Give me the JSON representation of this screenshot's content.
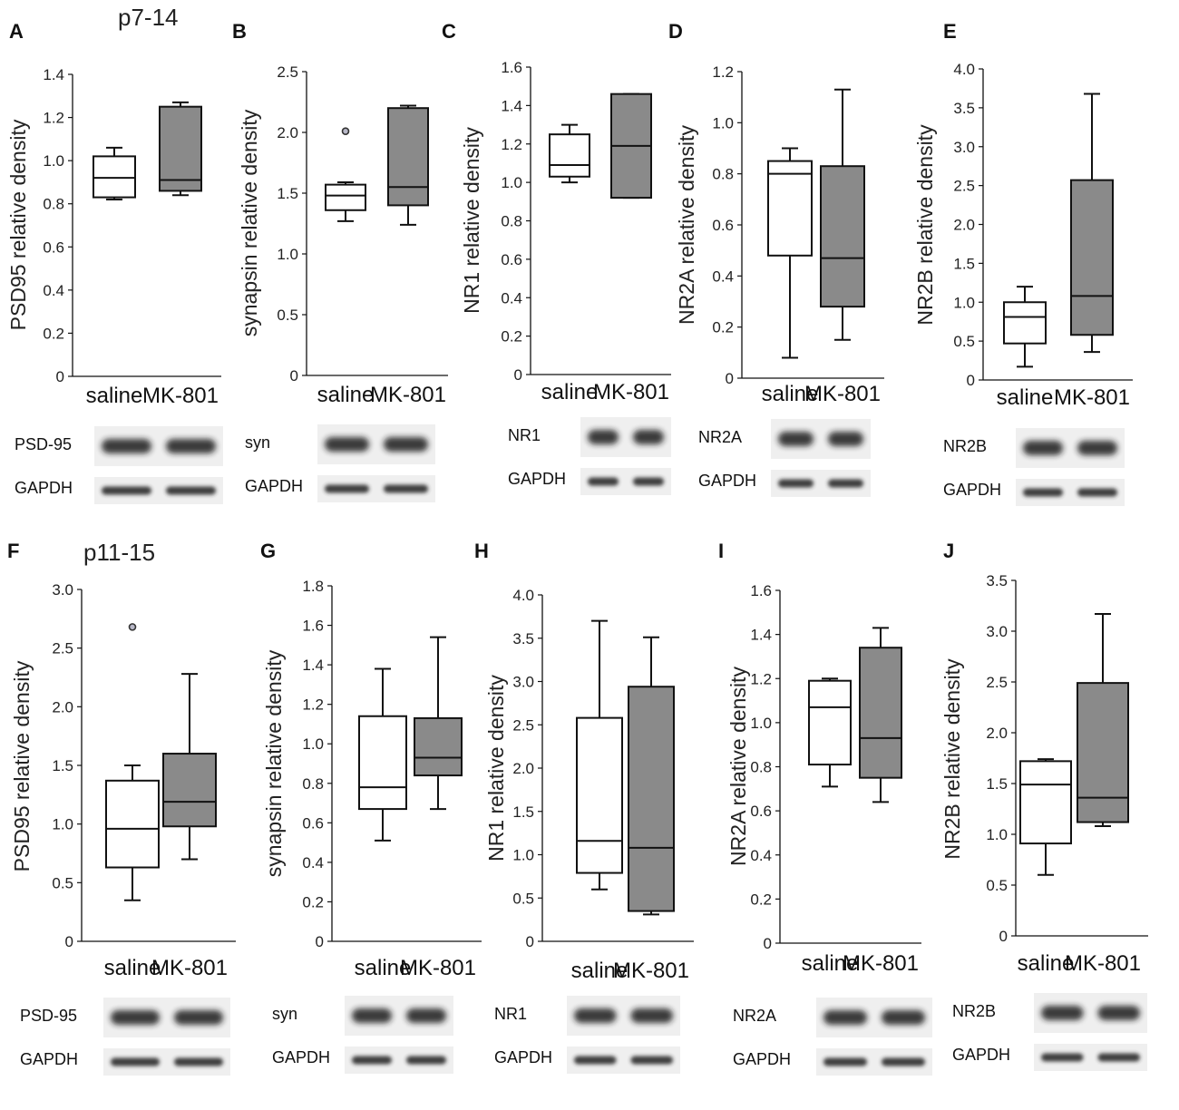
{
  "age_labels": {
    "top": "p7-14",
    "bottom": "p11-15"
  },
  "x_categories": [
    "saline",
    "MK-801"
  ],
  "colors": {
    "saline_fill": "#ffffff",
    "mk801_fill": "#8a8a8a",
    "stroke": "#111111",
    "outlier_fill": "#b8b8c8"
  },
  "chart_data": [
    {
      "panel": "A",
      "type": "box",
      "ylabel": "PSD95 relative density",
      "yticks": [
        "0",
        "0.2",
        "0.4",
        "0.6",
        "0.8",
        "1.0",
        "1.2",
        "1.4"
      ],
      "ylim": [
        0,
        1.4
      ],
      "categories": [
        "saline",
        "MK-801"
      ],
      "series": [
        {
          "whisker_low": 0.82,
          "q1": 0.83,
          "median": 0.92,
          "q3": 1.02,
          "whisker_high": 1.06,
          "outliers": []
        },
        {
          "whisker_low": 0.84,
          "q1": 0.86,
          "median": 0.91,
          "q3": 1.25,
          "whisker_high": 1.27,
          "outliers": []
        }
      ],
      "blots": [
        "PSD-95",
        "GAPDH"
      ]
    },
    {
      "panel": "B",
      "type": "box",
      "ylabel": "synapsin relative density",
      "yticks": [
        "0",
        "0.5",
        "1.0",
        "1.5",
        "2.0",
        "2.5"
      ],
      "ylim": [
        0,
        2.5
      ],
      "categories": [
        "saline",
        "MK-801"
      ],
      "series": [
        {
          "whisker_low": 1.27,
          "q1": 1.36,
          "median": 1.48,
          "q3": 1.57,
          "whisker_high": 1.59,
          "outliers": [
            2.01
          ]
        },
        {
          "whisker_low": 1.24,
          "q1": 1.4,
          "median": 1.55,
          "q3": 2.2,
          "whisker_high": 2.22,
          "outliers": []
        }
      ],
      "blots": [
        "syn",
        "GAPDH"
      ]
    },
    {
      "panel": "C",
      "type": "box",
      "ylabel": "NR1 relative density",
      "yticks": [
        "0",
        "0.2",
        "0.4",
        "0.6",
        "0.8",
        "1.0",
        "1.2",
        "1.4",
        "1.6"
      ],
      "ylim": [
        0,
        1.6
      ],
      "categories": [
        "saline",
        "MK-801"
      ],
      "series": [
        {
          "whisker_low": 1.0,
          "q1": 1.03,
          "median": 1.09,
          "q3": 1.25,
          "whisker_high": 1.3,
          "outliers": []
        },
        {
          "whisker_low": 0.92,
          "q1": 0.92,
          "median": 1.19,
          "q3": 1.46,
          "whisker_high": 1.46,
          "outliers": []
        }
      ],
      "blots": [
        "NR1",
        "GAPDH"
      ]
    },
    {
      "panel": "D",
      "type": "box",
      "ylabel": "NR2A relative density",
      "yticks": [
        "0",
        "0.2",
        "0.4",
        "0.6",
        "0.8",
        "1.0",
        "1.2"
      ],
      "ylim": [
        0,
        1.2
      ],
      "categories": [
        "saline",
        "MK-801"
      ],
      "series": [
        {
          "whisker_low": 0.08,
          "q1": 0.48,
          "median": 0.8,
          "q3": 0.85,
          "whisker_high": 0.9,
          "outliers": []
        },
        {
          "whisker_low": 0.15,
          "q1": 0.28,
          "median": 0.47,
          "q3": 0.83,
          "whisker_high": 1.13,
          "outliers": []
        }
      ],
      "blots": [
        "NR2A",
        "GAPDH"
      ]
    },
    {
      "panel": "E",
      "type": "box",
      "ylabel": "NR2B relative density",
      "yticks": [
        "0",
        "0.5",
        "1.0",
        "1.5",
        "2.0",
        "2.5",
        "3.0",
        "3.5",
        "4.0"
      ],
      "ylim": [
        0,
        4.0
      ],
      "categories": [
        "saline",
        "MK-801"
      ],
      "series": [
        {
          "whisker_low": 0.17,
          "q1": 0.47,
          "median": 0.81,
          "q3": 1.0,
          "whisker_high": 1.2,
          "outliers": []
        },
        {
          "whisker_low": 0.36,
          "q1": 0.58,
          "median": 1.08,
          "q3": 2.57,
          "whisker_high": 3.68,
          "outliers": []
        }
      ],
      "blots": [
        "NR2B",
        "GAPDH"
      ]
    },
    {
      "panel": "F",
      "type": "box",
      "ylabel": "PSD95 relative density",
      "yticks": [
        "0",
        "0.5",
        "1.0",
        "1.5",
        "2.0",
        "2.5",
        "3.0"
      ],
      "ylim": [
        0,
        3.0
      ],
      "categories": [
        "saline",
        "MK-801"
      ],
      "series": [
        {
          "whisker_low": 0.35,
          "q1": 0.63,
          "median": 0.96,
          "q3": 1.37,
          "whisker_high": 1.5,
          "outliers": [
            2.68
          ]
        },
        {
          "whisker_low": 0.7,
          "q1": 0.98,
          "median": 1.19,
          "q3": 1.6,
          "whisker_high": 2.28,
          "outliers": []
        }
      ],
      "blots": [
        "PSD-95",
        "GAPDH"
      ]
    },
    {
      "panel": "G",
      "type": "box",
      "ylabel": "synapsin relative density",
      "yticks": [
        "0",
        "0.2",
        "0.4",
        "0.6",
        "0.8",
        "1.0",
        "1.2",
        "1.4",
        "1.6",
        "1.8"
      ],
      "ylim": [
        0,
        1.8
      ],
      "categories": [
        "saline",
        "MK-801"
      ],
      "series": [
        {
          "whisker_low": 0.51,
          "q1": 0.67,
          "median": 0.78,
          "q3": 1.14,
          "whisker_high": 1.38,
          "outliers": []
        },
        {
          "whisker_low": 0.67,
          "q1": 0.84,
          "median": 0.93,
          "q3": 1.13,
          "whisker_high": 1.54,
          "outliers": []
        }
      ],
      "blots": [
        "syn",
        "GAPDH"
      ]
    },
    {
      "panel": "H",
      "type": "box",
      "ylabel": "NR1 relative density",
      "yticks": [
        "0",
        "0.5",
        "1.0",
        "1.5",
        "2.0",
        "2.5",
        "3.0",
        "3.5",
        "4.0"
      ],
      "ylim": [
        0,
        4.0
      ],
      "categories": [
        "saline",
        "MK-801"
      ],
      "series": [
        {
          "whisker_low": 0.6,
          "q1": 0.79,
          "median": 1.16,
          "q3": 2.58,
          "whisker_high": 3.7,
          "outliers": []
        },
        {
          "whisker_low": 0.31,
          "q1": 0.35,
          "median": 1.08,
          "q3": 2.94,
          "whisker_high": 3.51,
          "outliers": []
        }
      ],
      "blots": [
        "NR1",
        "GAPDH"
      ]
    },
    {
      "panel": "I",
      "type": "box",
      "ylabel": "NR2A relative density",
      "yticks": [
        "0",
        "0.2",
        "0.4",
        "0.6",
        "0.8",
        "1.0",
        "1.2",
        "1.4",
        "1.6"
      ],
      "ylim": [
        0,
        1.6
      ],
      "categories": [
        "saline",
        "MK-801"
      ],
      "series": [
        {
          "whisker_low": 0.71,
          "q1": 0.81,
          "median": 1.07,
          "q3": 1.19,
          "whisker_high": 1.2,
          "outliers": []
        },
        {
          "whisker_low": 0.64,
          "q1": 0.75,
          "median": 0.93,
          "q3": 1.34,
          "whisker_high": 1.43,
          "outliers": []
        }
      ],
      "blots": [
        "NR2A",
        "GAPDH"
      ]
    },
    {
      "panel": "J",
      "type": "box",
      "ylabel": "NR2B relative density",
      "yticks": [
        "0",
        "0.5",
        "1.0",
        "1.5",
        "2.0",
        "2.5",
        "3.0",
        "3.5"
      ],
      "ylim": [
        0,
        3.5
      ],
      "categories": [
        "saline",
        "MK-801"
      ],
      "series": [
        {
          "whisker_low": 0.6,
          "q1": 0.91,
          "median": 1.49,
          "q3": 1.72,
          "whisker_high": 1.74,
          "outliers": []
        },
        {
          "whisker_low": 1.08,
          "q1": 1.12,
          "median": 1.36,
          "q3": 2.49,
          "whisker_high": 3.17,
          "outliers": []
        }
      ],
      "blots": [
        "NR2B",
        "GAPDH"
      ]
    }
  ]
}
